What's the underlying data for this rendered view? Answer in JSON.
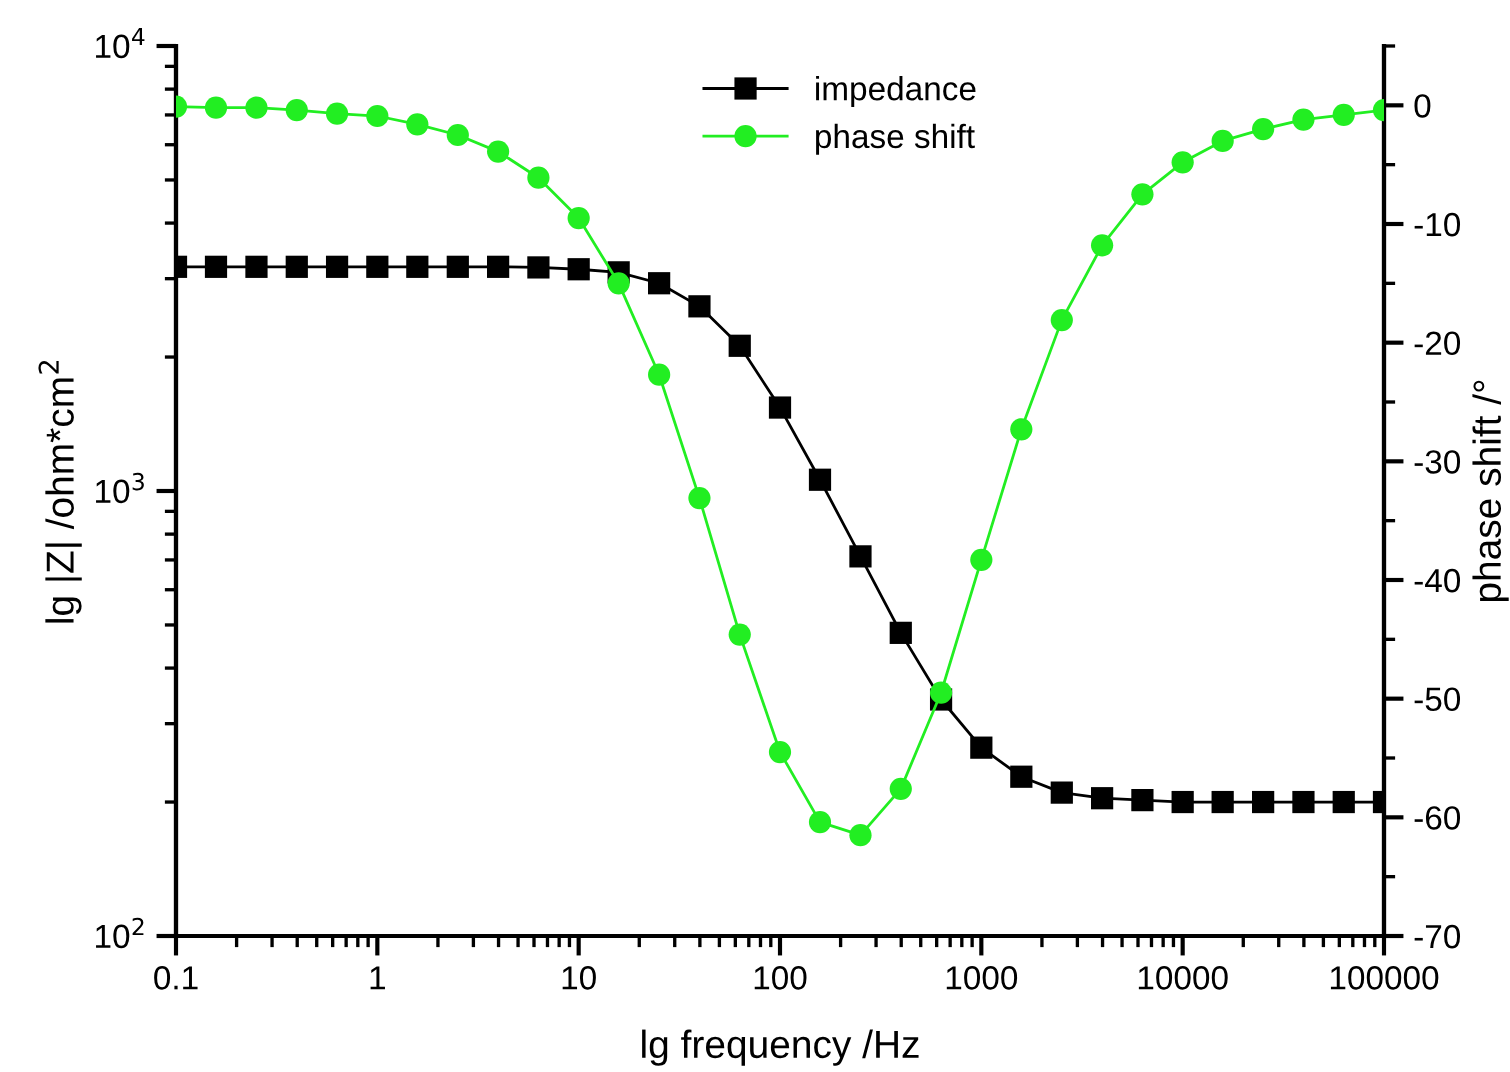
{
  "chart_data": {
    "type": "line",
    "xlabel": "lg frequency /Hz",
    "ylabel": "lg |Z| /ohm*cm$^{2}$",
    "y2label": "phase shift /°",
    "log": "xy",
    "grid": false,
    "legend": "top",
    "x": [
      0.1,
      0.158,
      0.251,
      0.398,
      0.631,
      1,
      1.58,
      2.51,
      3.98,
      6.31,
      10,
      15.8,
      25.1,
      39.8,
      63.1,
      100,
      158,
      251,
      398,
      631,
      1000,
      1580,
      2510,
      3980,
      6310,
      10000,
      15800,
      25100,
      39800,
      63100,
      100000
    ],
    "xlim": [
      0.1,
      100000
    ],
    "xticks": [
      0.1,
      1,
      10,
      100,
      1000,
      10000,
      100000
    ],
    "ylim": [
      100,
      10000
    ],
    "yticks": [
      {
        "value": 100,
        "label": "10$^{2}$"
      },
      {
        "value": 1000,
        "label": "10$^{3}$"
      },
      {
        "value": 10000,
        "label": "10$^{4}$"
      }
    ],
    "y2lim": [
      -70,
      5
    ],
    "y2ticks": [
      -70,
      -60,
      -50,
      -40,
      -30,
      -20,
      -10,
      0
    ],
    "series": [
      {
        "name": "impedance",
        "color": "#000000",
        "marker": "square",
        "values": [
          3190,
          3190,
          3190,
          3190,
          3190,
          3190,
          3190,
          3190,
          3190,
          3180,
          3150,
          3100,
          2930,
          2600,
          2120,
          1540,
          1060,
          713,
          480,
          340,
          265,
          228,
          210,
          204,
          202,
          200,
          200,
          200,
          200,
          200,
          200
        ]
      },
      {
        "name": "phase shift",
        "color": "#22ee22",
        "marker": "circle",
        "axis": "y2",
        "values": [
          -0.1,
          -0.2,
          -0.2,
          -0.4,
          -0.7,
          -0.9,
          -1.6,
          -2.5,
          -3.9,
          -6.1,
          -9.5,
          -15.0,
          -22.7,
          -33.1,
          -44.6,
          -54.5,
          -60.4,
          -61.5,
          -57.6,
          -49.5,
          -38.3,
          -27.3,
          -18.1,
          -11.8,
          -7.5,
          -4.8,
          -3.0,
          -2.0,
          -1.2,
          -0.8,
          -0.4
        ]
      }
    ]
  }
}
